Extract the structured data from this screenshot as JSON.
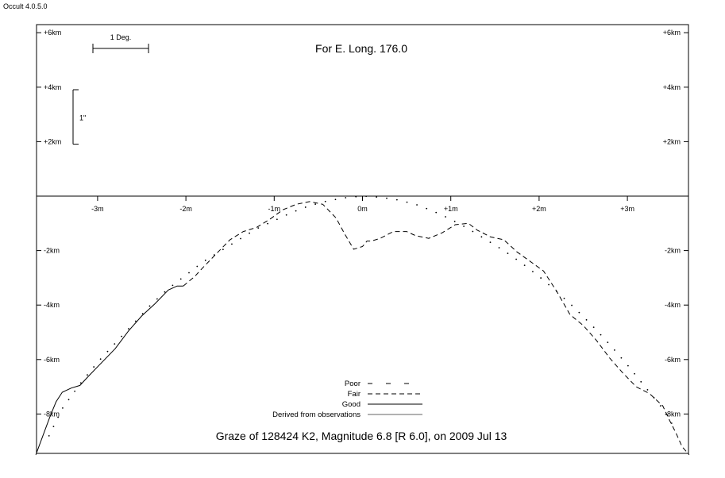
{
  "app": {
    "title": "Occult 4.0.5.0"
  },
  "chart_data": {
    "type": "line",
    "title": "Graze of  128424 K2,  Magnitude 6.8 [R 6.0],  on 2009 Jul 13",
    "subtitle": "For E. Long. 176.0",
    "x_unit": "minutes of position angle",
    "y_unit": "km",
    "xlim": [
      -3.7,
      3.7
    ],
    "ylim": [
      -9.5,
      6.0
    ],
    "x_ticks": [
      -3,
      -2,
      -1,
      0,
      1,
      2,
      3
    ],
    "x_tick_labels": [
      "-3m",
      "-2m",
      "-1m",
      "0m",
      "+1m",
      "+2m",
      "+3m"
    ],
    "y_ticks_upper": [
      6,
      4,
      2
    ],
    "y_tick_labels_upper": [
      "+6km",
      "+4km",
      "+2km"
    ],
    "y_ticks_lower": [
      -2,
      -4,
      -6,
      -8
    ],
    "y_tick_labels_lower": [
      "-2km",
      "-4km",
      "-6km",
      "-8km"
    ],
    "scale_bars": {
      "horizontal_label": "1 Deg.",
      "horizontal_length_minutes": 0.63,
      "vertical_label": "1\"",
      "vertical_length_km": 2.0
    },
    "legend": {
      "placement": "bottom-center",
      "items": [
        {
          "label": "Poor",
          "style": "sparse-dash"
        },
        {
          "label": "Fair",
          "style": "dash"
        },
        {
          "label": "Good",
          "style": "solid"
        },
        {
          "label": "Derived from observations",
          "style": "solid-grey"
        }
      ]
    },
    "series": [
      {
        "style": "dotted",
        "x": [
          -3.55,
          -3.4,
          -3.2,
          -3.0,
          -2.8,
          -2.6,
          -2.4,
          -2.2,
          -2.0,
          -1.8,
          -1.6,
          -1.4,
          -1.2,
          -1.0,
          -0.8,
          -0.6,
          -0.4,
          -0.2,
          0.0,
          0.2,
          0.4,
          0.6,
          0.8,
          1.0,
          1.2,
          1.4,
          1.6,
          1.8,
          2.0,
          2.2,
          2.4,
          2.6,
          2.8,
          3.0,
          3.2,
          3.4,
          3.55
        ],
        "y": [
          -8.8,
          -7.8,
          -6.9,
          -6.1,
          -5.4,
          -4.7,
          -4.0,
          -3.4,
          -2.9,
          -2.4,
          -2.0,
          -1.6,
          -1.2,
          -0.9,
          -0.6,
          -0.35,
          -0.18,
          -0.06,
          0.0,
          -0.04,
          -0.14,
          -0.3,
          -0.55,
          -0.85,
          -1.2,
          -1.6,
          -2.0,
          -2.45,
          -2.95,
          -3.5,
          -4.1,
          -4.75,
          -5.45,
          -6.2,
          -7.0,
          -7.8,
          -8.6
        ]
      },
      {
        "style": "solid",
        "x": [
          -3.7,
          -3.62,
          -3.54,
          -3.47,
          -3.4,
          -3.3,
          -3.2,
          -3.1,
          -2.95,
          -2.8,
          -2.65,
          -2.5,
          -2.35,
          -2.2,
          -2.1,
          -2.03
        ],
        "y": [
          -9.5,
          -8.8,
          -8.1,
          -7.55,
          -7.2,
          -7.05,
          -6.95,
          -6.6,
          -6.1,
          -5.6,
          -4.95,
          -4.4,
          -3.95,
          -3.45,
          -3.3,
          -3.3
        ]
      },
      {
        "style": "dash",
        "x": [
          -2.03,
          -1.9,
          -1.8,
          -1.65,
          -1.5,
          -1.35,
          -1.2,
          -1.05,
          -0.9,
          -0.75,
          -0.6,
          -0.45,
          -0.3,
          -0.2,
          -0.1,
          0.0,
          0.05,
          0.1,
          0.2,
          0.35,
          0.5,
          0.6,
          0.75,
          0.9,
          1.05,
          1.2,
          1.3,
          1.45,
          1.6,
          1.75,
          1.9,
          2.05,
          2.2,
          2.35,
          2.5,
          2.65,
          2.8,
          2.95,
          3.1,
          3.25,
          3.4,
          3.48,
          3.55,
          3.62,
          3.7
        ],
        "y": [
          -3.3,
          -2.95,
          -2.6,
          -2.1,
          -1.6,
          -1.3,
          -1.15,
          -0.85,
          -0.5,
          -0.3,
          -0.2,
          -0.3,
          -0.8,
          -1.4,
          -1.95,
          -1.85,
          -1.65,
          -1.65,
          -1.55,
          -1.3,
          -1.3,
          -1.45,
          -1.55,
          -1.35,
          -1.05,
          -1.0,
          -1.25,
          -1.5,
          -1.6,
          -2.05,
          -2.4,
          -2.75,
          -3.5,
          -4.35,
          -4.75,
          -5.3,
          -5.95,
          -6.5,
          -7.0,
          -7.25,
          -7.7,
          -8.25,
          -8.7,
          -9.2,
          -9.5
        ]
      }
    ]
  }
}
